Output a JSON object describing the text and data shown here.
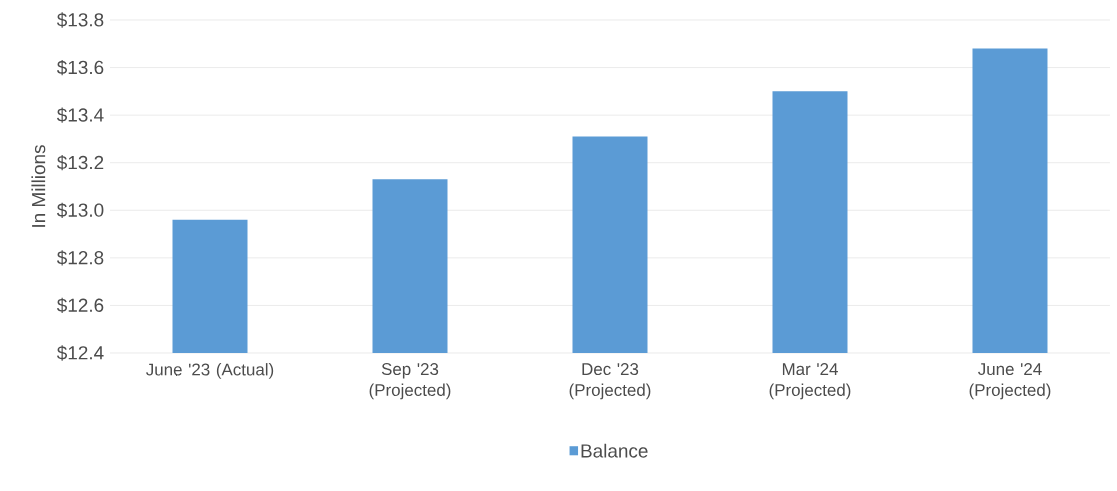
{
  "chart_data": {
    "type": "bar",
    "ylabel": "In Millions",
    "categories": [
      "June '23 (Actual)",
      "Sep '23 (Projected)",
      "Dec '23 (Projected)",
      "Mar '24 (Projected)",
      "June '24 (Projected)"
    ],
    "series": [
      {
        "name": "Balance",
        "color": "#5b9bd5",
        "values": [
          12.96,
          13.13,
          13.31,
          13.5,
          13.68
        ]
      }
    ],
    "ylim": [
      12.4,
      13.8
    ],
    "yticks": [
      {
        "value": 12.4,
        "label": "$12.4"
      },
      {
        "value": 12.6,
        "label": "$12.6"
      },
      {
        "value": 12.8,
        "label": "$12.8"
      },
      {
        "value": 13.0,
        "label": "$13.0"
      },
      {
        "value": 13.2,
        "label": "$13.2"
      },
      {
        "value": 13.4,
        "label": "$13.4"
      },
      {
        "value": 13.6,
        "label": "$13.6"
      },
      {
        "value": 13.8,
        "label": "$13.8"
      }
    ],
    "grid": "y",
    "legend": "bottom"
  }
}
